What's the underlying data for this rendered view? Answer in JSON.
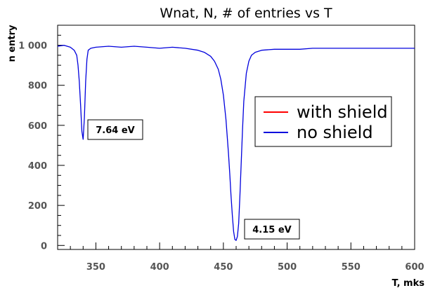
{
  "chart_data": {
    "type": "line",
    "title": "Wnat,  N,  # of entries  vs  T",
    "xlabel": "T,  mks",
    "ylabel": "n entry",
    "xlim": [
      320,
      600
    ],
    "ylim": [
      -20,
      1100
    ],
    "x_ticks": [
      350,
      400,
      450,
      500,
      550,
      600
    ],
    "y_ticks": [
      0,
      200,
      400,
      600,
      800,
      1000
    ],
    "x_tick_labels": [
      "350",
      "400",
      "450",
      "500",
      "550",
      "600"
    ],
    "y_tick_labels": [
      "0",
      "200",
      "400",
      "600",
      "800",
      "1 000"
    ],
    "grid": false,
    "legend_position": "right",
    "series": [
      {
        "name": "with shield",
        "color": "#ff0000",
        "x": [],
        "y": []
      },
      {
        "name": "no  shield",
        "color": "#0000dd",
        "x": [
          320,
          325,
          330,
          333,
          335,
          336,
          337,
          338,
          339,
          340,
          341,
          342,
          343,
          344,
          346,
          350,
          360,
          370,
          380,
          390,
          400,
          410,
          420,
          430,
          435,
          440,
          443,
          446,
          448,
          450,
          452,
          454,
          455,
          456,
          457,
          458,
          459,
          460,
          461,
          462,
          463,
          464,
          465,
          466,
          468,
          470,
          472,
          475,
          480,
          490,
          500,
          510,
          520,
          530,
          540,
          550,
          560,
          570,
          580,
          590,
          600
        ],
        "y": [
          995,
          1000,
          990,
          975,
          950,
          900,
          820,
          700,
          570,
          530,
          640,
          820,
          930,
          975,
          985,
          990,
          995,
          990,
          995,
          990,
          985,
          990,
          985,
          975,
          965,
          945,
          920,
          880,
          830,
          750,
          630,
          460,
          360,
          250,
          150,
          70,
          30,
          25,
          45,
          110,
          250,
          420,
          580,
          720,
          860,
          920,
          950,
          965,
          975,
          980,
          980,
          980,
          985,
          985,
          985,
          985,
          985,
          985,
          985,
          985,
          985
        ]
      }
    ],
    "annotations": [
      {
        "text": "7.64 eV",
        "x": 340,
        "y": 570
      },
      {
        "text": "4.15 eV",
        "x": 460,
        "y": 100
      }
    ]
  }
}
